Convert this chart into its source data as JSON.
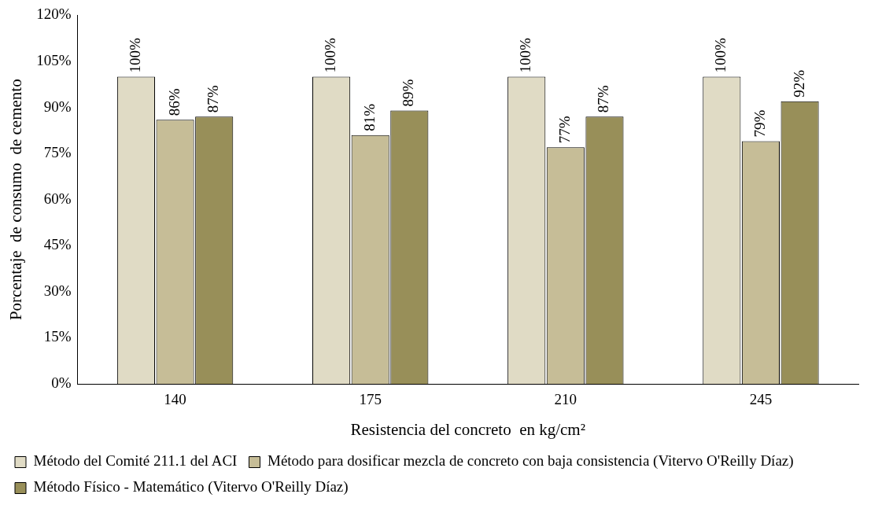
{
  "chart_data": {
    "type": "bar",
    "xlabel": "Resistencia del concreto  en kg/cm²",
    "ylabel": "Porcentaje  de consumo  de cemento",
    "categories": [
      "140",
      "175",
      "210",
      "245"
    ],
    "series": [
      {
        "name": "Método del Comité 211.1 del ACI",
        "color": "#e0dbc5",
        "values": [
          100,
          100,
          100,
          100
        ]
      },
      {
        "name": "Método para dosificar mezcla de concreto con baja consistencia (Vitervo O'Reilly Díaz)",
        "color": "#c6bd97",
        "values": [
          86,
          81,
          77,
          79
        ]
      },
      {
        "name": "Método Físico - Matemático (Vitervo O'Reilly Díaz)",
        "color": "#988f59",
        "values": [
          87,
          89,
          87,
          92
        ]
      }
    ],
    "value_labels": [
      [
        "100%",
        "100%",
        "100%",
        "100%"
      ],
      [
        "86%",
        "81%",
        "77%",
        "79%"
      ],
      [
        "87%",
        "89%",
        "87%",
        "92%"
      ]
    ],
    "ylim": [
      0,
      120
    ],
    "yticks": [
      {
        "value": 0,
        "label": "0%"
      },
      {
        "value": 15,
        "label": "15%"
      },
      {
        "value": 30,
        "label": "30%"
      },
      {
        "value": 45,
        "label": "45%"
      },
      {
        "value": 60,
        "label": "60%"
      },
      {
        "value": 75,
        "label": "75%"
      },
      {
        "value": 90,
        "label": "90%"
      },
      {
        "value": 105,
        "label": "105%"
      },
      {
        "value": 120,
        "label": "120%"
      }
    ],
    "grid": false,
    "legend": "bottom"
  }
}
